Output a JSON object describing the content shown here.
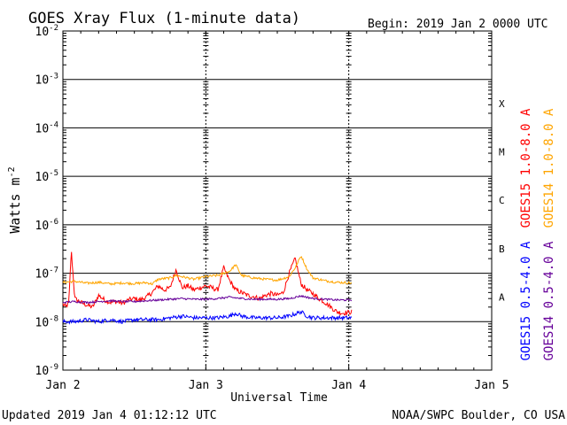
{
  "chart_data": {
    "type": "line",
    "title": "GOES Xray Flux (1-minute data)",
    "begin_label": "Begin:  2019 Jan 2 0000 UTC",
    "xlabel": "Universal Time",
    "ylabel_base": "Watts m",
    "ylabel_exp": "-2",
    "yscale": "log",
    "ylim": [
      1e-09,
      0.01
    ],
    "y_ticks": [
      {
        "value": 0.01,
        "base": "10",
        "exp": "-2"
      },
      {
        "value": 0.001,
        "base": "10",
        "exp": "-3"
      },
      {
        "value": 0.0001,
        "base": "10",
        "exp": "-4"
      },
      {
        "value": 1e-05,
        "base": "10",
        "exp": "-5"
      },
      {
        "value": 1e-06,
        "base": "10",
        "exp": "-6"
      },
      {
        "value": 1e-07,
        "base": "10",
        "exp": "-7"
      },
      {
        "value": 1e-08,
        "base": "10",
        "exp": "-8"
      },
      {
        "value": 1e-09,
        "base": "10",
        "exp": "-9"
      }
    ],
    "xlim": [
      0,
      72
    ],
    "x_ticks": [
      {
        "value": 0,
        "label": "Jan 2"
      },
      {
        "value": 24,
        "label": "Jan 3"
      },
      {
        "value": 48,
        "label": "Jan 4"
      },
      {
        "value": 72,
        "label": "Jan 5"
      }
    ],
    "flare_classes": [
      {
        "label": "X",
        "value": 0.00032
      },
      {
        "label": "M",
        "value": 3.2e-05
      },
      {
        "label": "C",
        "value": 3.2e-06
      },
      {
        "label": "B",
        "value": 3.2e-07
      },
      {
        "label": "A",
        "value": 3.2e-08
      }
    ],
    "series": [
      {
        "name": "GOES15 1.0-8.0 A",
        "color": "#ff0000",
        "x": [
          0,
          0.5,
          1,
          1.4,
          2,
          3,
          4,
          5,
          6,
          7,
          8,
          9,
          10,
          11,
          12,
          13,
          14,
          15,
          16,
          17,
          18,
          19,
          20,
          21,
          22,
          23,
          24,
          25,
          26,
          27,
          28,
          29,
          30,
          31,
          32,
          33,
          34,
          35,
          36,
          37,
          38,
          39,
          40,
          41,
          42,
          43,
          44,
          45,
          46,
          47,
          48.5
        ],
        "values": [
          2.3e-08,
          2e-08,
          2.5e-08,
          3e-07,
          3e-08,
          2.5e-08,
          2.2e-08,
          2e-08,
          3.5e-08,
          2.8e-08,
          2.5e-08,
          2.6e-08,
          2.4e-08,
          2.8e-08,
          3e-08,
          2.8e-08,
          3.2e-08,
          4e-08,
          5.5e-08,
          4.5e-08,
          5e-08,
          1.2e-07,
          5e-08,
          5.5e-08,
          4.5e-08,
          5e-08,
          5.5e-08,
          5e-08,
          4.5e-08,
          1.3e-07,
          7e-08,
          4.5e-08,
          4e-08,
          3.5e-08,
          3.3e-08,
          3e-08,
          3.5e-08,
          3.8e-08,
          3.5e-08,
          4e-08,
          1e-07,
          2e-07,
          6e-08,
          4.5e-08,
          3.8e-08,
          3e-08,
          2.5e-08,
          2e-08,
          1.6e-08,
          1.5e-08,
          1.6e-08
        ]
      },
      {
        "name": "GOES14 1.0-8.0 A",
        "color": "#ffa500",
        "x": [
          0,
          2,
          4,
          6,
          8,
          10,
          12,
          14,
          15,
          16,
          18,
          19,
          20,
          22,
          24,
          26,
          28,
          29,
          30,
          32,
          34,
          36,
          38,
          39,
          40,
          41,
          42,
          44,
          46,
          48.5
        ],
        "values": [
          6.5e-08,
          6.8e-08,
          6.2e-08,
          6.5e-08,
          6e-08,
          6.3e-08,
          6.1e-08,
          6.4e-08,
          6e-08,
          7.5e-08,
          8e-08,
          9e-08,
          8.5e-08,
          7.5e-08,
          8.5e-08,
          9e-08,
          1.1e-07,
          1.5e-07,
          9e-08,
          8e-08,
          7.5e-08,
          7.2e-08,
          8.5e-08,
          1.3e-07,
          2.3e-07,
          1.2e-07,
          8e-08,
          7e-08,
          6.5e-08,
          6.3e-08
        ]
      },
      {
        "name": "GOES15 0.5-4.0 A",
        "color": "#0000ff",
        "x": [
          0,
          2,
          4,
          6,
          8,
          10,
          12,
          14,
          16,
          18,
          20,
          22,
          24,
          26,
          28,
          29,
          30,
          32,
          34,
          36,
          38,
          40,
          41,
          42,
          44,
          46,
          48.5
        ],
        "values": [
          1e-08,
          1e-08,
          1.1e-08,
          1e-08,
          1.1e-08,
          1e-08,
          1.1e-08,
          1.1e-08,
          1.1e-08,
          1.2e-08,
          1.3e-08,
          1.2e-08,
          1.2e-08,
          1.2e-08,
          1.3e-08,
          1.5e-08,
          1.3e-08,
          1.2e-08,
          1.2e-08,
          1.2e-08,
          1.3e-08,
          1.6e-08,
          1.3e-08,
          1.2e-08,
          1.2e-08,
          1.2e-08,
          1.2e-08
        ]
      },
      {
        "name": "GOES14 0.5-4.0 A",
        "color": "#660099",
        "x": [
          0,
          2,
          4,
          6,
          8,
          10,
          12,
          14,
          16,
          18,
          20,
          22,
          24,
          26,
          28,
          30,
          32,
          34,
          36,
          38,
          40,
          42,
          44,
          46,
          48.5
        ],
        "values": [
          2.5e-08,
          2.6e-08,
          2.5e-08,
          2.6e-08,
          2.7e-08,
          2.6e-08,
          2.6e-08,
          2.7e-08,
          2.8e-08,
          2.9e-08,
          3e-08,
          2.9e-08,
          2.9e-08,
          3e-08,
          3.2e-08,
          3e-08,
          2.9e-08,
          2.9e-08,
          2.9e-08,
          3e-08,
          3.4e-08,
          3e-08,
          2.9e-08,
          2.8e-08,
          2.8e-08
        ]
      }
    ]
  },
  "footer": {
    "updated": "Updated 2019 Jan  4 01:12:12 UTC",
    "credit": "NOAA/SWPC Boulder, CO USA"
  }
}
